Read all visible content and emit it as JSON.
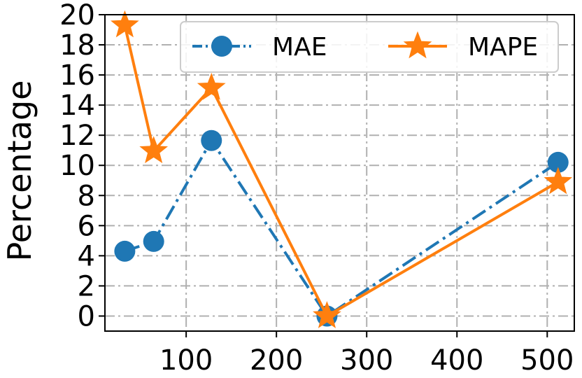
{
  "chart_data": {
    "type": "line",
    "xlabel": "",
    "ylabel": "Percentage",
    "xlim": [
      10,
      530
    ],
    "ylim": [
      -1,
      20
    ],
    "xticks": [
      100,
      200,
      300,
      400,
      500
    ],
    "yticks": [
      0,
      2,
      4,
      6,
      8,
      10,
      12,
      14,
      16,
      18,
      20
    ],
    "grid": true,
    "legend_position": "top-right",
    "series": [
      {
        "name": "MAE",
        "color": "#1f77b4",
        "line_style": "dash-dot",
        "marker": "circle",
        "x": [
          32,
          64,
          128,
          256,
          512
        ],
        "y": [
          4.3,
          4.95,
          11.65,
          0.0,
          10.2
        ]
      },
      {
        "name": "MAPE",
        "color": "#ff7f0e",
        "line_style": "solid",
        "marker": "star",
        "x": [
          32,
          64,
          128,
          256,
          512
        ],
        "y": [
          19.3,
          10.95,
          15.15,
          0.0,
          8.9
        ]
      }
    ]
  }
}
